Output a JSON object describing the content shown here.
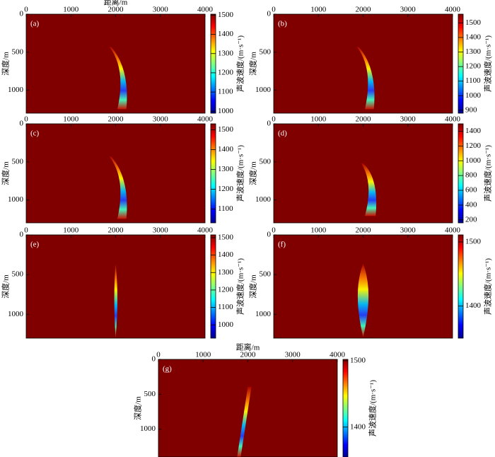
{
  "chart_data": [
    {
      "type": "heatmap",
      "panel_label": "(a)",
      "x_label": "距离/m",
      "y_label": "深度/m",
      "colorbar_label": "声波速度/(m·s⁻¹)",
      "xlim": [
        0,
        4000
      ],
      "xticks": [
        0,
        1000,
        2000,
        3000,
        4000
      ],
      "ylim": [
        0,
        1300
      ],
      "yticks": [
        0,
        500,
        1000
      ],
      "clim": [
        990,
        1505
      ],
      "cticks": [
        1000,
        1100,
        1200,
        1300,
        1400,
        1500
      ]
    },
    {
      "type": "heatmap",
      "panel_label": "(b)",
      "y_label": "深度/m",
      "colorbar_label": "声波速度/(m·s⁻¹)",
      "xlim": [
        0,
        4000
      ],
      "xticks": [
        0,
        1000,
        2000,
        3000,
        4000
      ],
      "ylim": [
        0,
        1300
      ],
      "yticks": [
        0,
        500,
        1000
      ],
      "clim": [
        880,
        1560
      ],
      "cticks": [
        900,
        1000,
        1100,
        1200,
        1300,
        1400,
        1500
      ]
    },
    {
      "type": "heatmap",
      "panel_label": "(c)",
      "y_label": "深度/m",
      "colorbar_label": "声波速度/(m·s⁻¹)",
      "xlim": [
        0,
        4000
      ],
      "xticks": [
        0,
        1000,
        2000,
        3000,
        4000
      ],
      "ylim": [
        0,
        1300
      ],
      "yticks": [
        0,
        500,
        1000
      ],
      "clim": [
        1030,
        1530
      ],
      "cticks": [
        1100,
        1200,
        1300,
        1400,
        1500
      ]
    },
    {
      "type": "heatmap",
      "panel_label": "(d)",
      "y_label": "深度/m",
      "colorbar_label": "声波速度/(m·s⁻¹)",
      "xlim": [
        0,
        4000
      ],
      "xticks": [
        0,
        1000,
        2000,
        3000,
        4000
      ],
      "ylim": [
        0,
        1300
      ],
      "yticks": [
        0,
        500,
        1000
      ],
      "clim": [
        160,
        1500
      ],
      "cticks": [
        200,
        400,
        600,
        800,
        1000,
        1200,
        1400
      ]
    },
    {
      "type": "heatmap",
      "panel_label": "(e)",
      "y_label": "深度/m",
      "colorbar_label": "声波速度/(m·s⁻¹)",
      "xlim": [
        0,
        4000
      ],
      "xticks": [
        0,
        1000,
        2000,
        3000,
        4000
      ],
      "ylim": [
        0,
        1300
      ],
      "yticks": [
        0,
        500,
        1000
      ],
      "clim": [
        924,
        1516
      ],
      "cticks": [
        1000,
        1100,
        1200,
        1300,
        1400,
        1500
      ]
    },
    {
      "type": "heatmap",
      "panel_label": "(f)",
      "y_label": "深度/m",
      "colorbar_label": "声波速度/(m·s⁻¹)",
      "xlim": [
        0,
        4000
      ],
      "xticks": [
        0,
        1000,
        2000,
        3000,
        4000
      ],
      "ylim": [
        0,
        1300
      ],
      "yticks": [
        0,
        500,
        1000
      ],
      "clim": [
        1350,
        1511
      ],
      "cticks": [
        1400,
        1500
      ]
    },
    {
      "type": "heatmap",
      "panel_label": "(g)",
      "x_label": "距离/m",
      "y_label": "深度/m",
      "colorbar_label": "声波速度/(m·s⁻¹)",
      "xlim": [
        0,
        4000
      ],
      "xticks": [
        0,
        1000,
        2000,
        3000,
        4000
      ],
      "ylim": [
        0,
        1400
      ],
      "yticks": [
        0,
        500,
        1000
      ],
      "clim": [
        1355,
        1502
      ],
      "cticks": [
        1400,
        1500
      ]
    }
  ]
}
